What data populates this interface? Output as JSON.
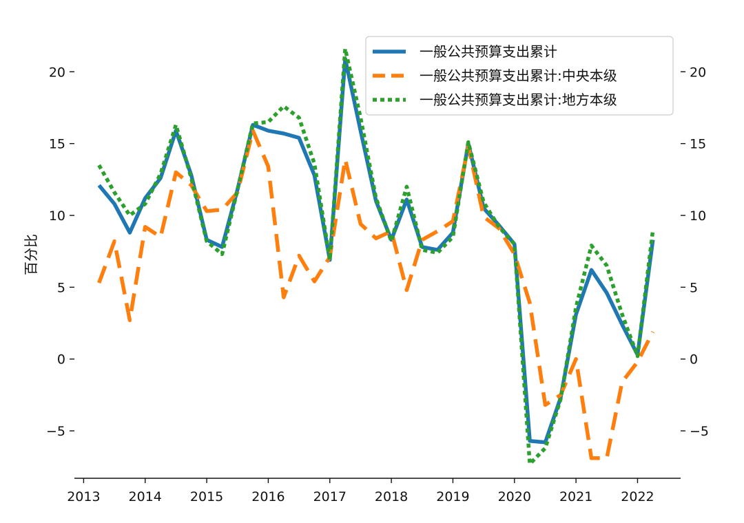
{
  "chart_data": {
    "type": "line",
    "title": "",
    "xlabel": "",
    "ylabel": "百分比",
    "xlim": [
      2012.85,
      2022.7
    ],
    "ylim": [
      -8.3,
      22.6
    ],
    "x_ticks": [
      2013,
      2014,
      2015,
      2016,
      2017,
      2018,
      2019,
      2020,
      2021,
      2022
    ],
    "y_ticks": [
      -5,
      0,
      5,
      10,
      15,
      20
    ],
    "grid": false,
    "right_axis": true,
    "legend": {
      "placement": "top-right"
    },
    "x": [
      2013.25,
      2013.5,
      2013.75,
      2014.0,
      2014.25,
      2014.5,
      2014.75,
      2015.0,
      2015.25,
      2015.5,
      2015.75,
      2016.0,
      2016.25,
      2016.5,
      2016.75,
      2017.0,
      2017.25,
      2017.5,
      2017.75,
      2018.0,
      2018.25,
      2018.5,
      2018.75,
      2019.0,
      2019.25,
      2019.5,
      2019.75,
      2020.0,
      2020.25,
      2020.5,
      2020.75,
      2021.0,
      2021.25,
      2021.5,
      2021.75,
      2022.0,
      2022.25
    ],
    "series": [
      {
        "name": "一般公共预算支出累计",
        "color": "#1f77b4",
        "style": "solid",
        "values": [
          12.1,
          10.8,
          8.8,
          11.2,
          12.6,
          15.9,
          12.8,
          8.3,
          7.8,
          11.8,
          16.3,
          15.9,
          15.7,
          15.4,
          12.8,
          6.9,
          20.9,
          15.9,
          11.0,
          8.3,
          11.1,
          7.8,
          7.6,
          8.8,
          15.0,
          10.5,
          9.3,
          8.0,
          -5.7,
          -5.8,
          -2.7,
          3.1,
          6.2,
          4.6,
          2.4,
          0.3,
          8.3
        ]
      },
      {
        "name": "一般公共预算支出累计:中央本级",
        "color": "#ff7f0e",
        "style": "dashed",
        "values": [
          5.3,
          8.2,
          2.7,
          9.2,
          8.5,
          13.0,
          12.1,
          10.3,
          10.4,
          11.6,
          15.9,
          13.4,
          4.3,
          7.2,
          5.4,
          7.1,
          13.9,
          9.4,
          8.4,
          8.9,
          4.8,
          8.3,
          8.9,
          9.6,
          14.8,
          9.9,
          9.1,
          7.3,
          3.9,
          -3.2,
          -2.5,
          0.0,
          -6.9,
          -6.9,
          -1.6,
          -0.2,
          1.9
        ]
      },
      {
        "name": "一般公共预算支出累计:地方本级",
        "color": "#2ca02c",
        "style": "dotted",
        "values": [
          13.5,
          11.6,
          10.0,
          10.8,
          12.9,
          16.3,
          12.6,
          8.2,
          7.3,
          11.8,
          16.4,
          16.5,
          17.6,
          16.8,
          13.6,
          6.9,
          21.6,
          16.8,
          11.2,
          8.2,
          12.0,
          7.6,
          7.4,
          8.5,
          15.1,
          10.9,
          9.2,
          8.0,
          -7.3,
          -6.2,
          -2.8,
          3.6,
          7.9,
          6.5,
          3.1,
          0.2,
          9.0
        ]
      }
    ]
  }
}
